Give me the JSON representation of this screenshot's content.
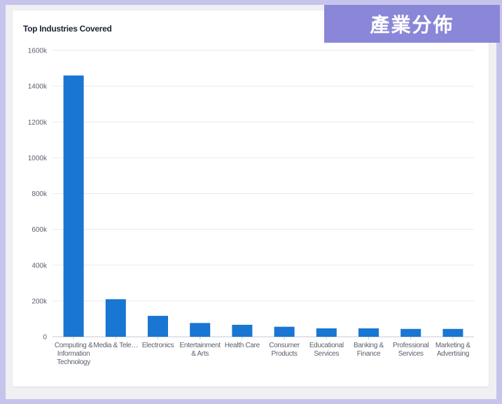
{
  "badge": {
    "text": "產業分佈"
  },
  "colors": {
    "bar": "#1976d2",
    "grid": "#e8eaee",
    "axis": "#c5cad3",
    "frame": "#c6c4ec",
    "badge": "#8a87d8"
  },
  "chart_data": {
    "type": "bar",
    "title": "Top Industries Covered",
    "xlabel": "",
    "ylabel": "",
    "ylim": [
      0,
      1600000
    ],
    "yticks": [
      0,
      200000,
      400000,
      600000,
      800000,
      1000000,
      1200000,
      1400000,
      1600000
    ],
    "ytick_labels": [
      "0",
      "200k",
      "400k",
      "600k",
      "800k",
      "1000k",
      "1200k",
      "1400k",
      "1600k"
    ],
    "grid": true,
    "categories": [
      "Computing & Information Technology",
      "Media & Tele…",
      "Electronics",
      "Entertainment & Arts",
      "Health Care",
      "Consumer Products",
      "Educational Services",
      "Banking & Finance",
      "Professional Services",
      "Marketing & Advertising"
    ],
    "category_lines": [
      [
        "Computing &",
        "Information",
        "Technology"
      ],
      [
        "Media & Tele…"
      ],
      [
        "Electronics"
      ],
      [
        "Entertainment",
        "& Arts"
      ],
      [
        "Health Care"
      ],
      [
        "Consumer",
        "Products"
      ],
      [
        "Educational",
        "Services"
      ],
      [
        "Banking &",
        "Finance"
      ],
      [
        "Professional",
        "Services"
      ],
      [
        "Marketing &",
        "Advertising"
      ]
    ],
    "values": [
      1460000,
      210000,
      117000,
      77000,
      67000,
      56000,
      47000,
      47000,
      44000,
      44000
    ]
  }
}
